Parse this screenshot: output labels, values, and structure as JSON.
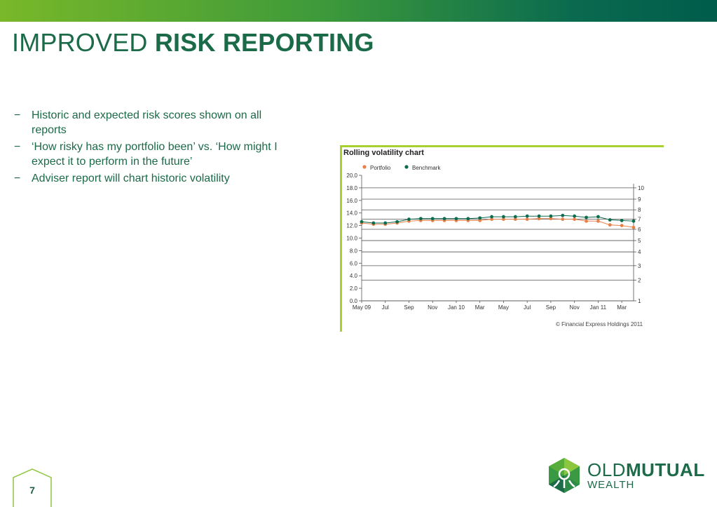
{
  "header": {
    "title_light": "IMPROVED",
    "title_bold": "RISK REPORTING",
    "bar_colors": [
      "#79b829",
      "#005c4b"
    ]
  },
  "bullets": [
    {
      "marker": "−",
      "text": "Historic and expected risk scores shown on all reports"
    },
    {
      "marker": "−",
      "text": "‘How risky has my portfolio been’ vs. ‘How might I expect it to perform in the future’"
    },
    {
      "marker": "−",
      "text": "Adviser report will chart historic volatility"
    }
  ],
  "chart_data": {
    "type": "line",
    "title": "Rolling volatility chart",
    "legend": [
      "Portfolio",
      "Benchmark"
    ],
    "legend_placement": "top-left",
    "x": [
      "May 09",
      "Jun 09",
      "Jul",
      "Aug",
      "Sep",
      "Oct",
      "Nov",
      "Dec",
      "Jan 10",
      "Feb",
      "Mar",
      "Apr",
      "May",
      "Jun",
      "Jul",
      "Aug",
      "Sep",
      "Oct",
      "Nov",
      "Dec",
      "Jan 11",
      "Feb",
      "Mar",
      "Apr"
    ],
    "x_tick_labels": [
      "May 09",
      "Jul",
      "Sep",
      "Nov",
      "Jan 10",
      "Mar",
      "May",
      "Jul",
      "Sep",
      "Nov",
      "Jan 11",
      "Mar"
    ],
    "x_tick_indices": [
      0,
      2,
      4,
      6,
      8,
      10,
      12,
      14,
      16,
      18,
      20,
      22
    ],
    "series": [
      {
        "name": "Portfolio",
        "color": "#e8804a",
        "values": [
          12.4,
          12.2,
          12.2,
          12.4,
          12.7,
          12.8,
          12.8,
          12.8,
          12.8,
          12.8,
          12.8,
          13.0,
          13.0,
          13.0,
          13.0,
          13.1,
          13.1,
          13.0,
          13.0,
          12.7,
          12.7,
          12.1,
          12.0,
          11.7
        ]
      },
      {
        "name": "Benchmark",
        "color": "#0d6b4e",
        "values": [
          12.6,
          12.4,
          12.4,
          12.6,
          13.0,
          13.1,
          13.1,
          13.1,
          13.1,
          13.1,
          13.2,
          13.4,
          13.4,
          13.4,
          13.5,
          13.5,
          13.5,
          13.6,
          13.5,
          13.3,
          13.4,
          12.9,
          12.8,
          12.7
        ]
      }
    ],
    "y_left": {
      "ylim": [
        0,
        20
      ],
      "ticks": [
        "0.0",
        "2.0",
        "4.0",
        "6.0",
        "8.0",
        "10.0",
        "12.0",
        "14.0",
        "16.0",
        "18.0",
        "20.0"
      ]
    },
    "y_right": {
      "label_values": [
        1,
        2,
        3,
        4,
        5,
        6,
        7,
        8,
        9,
        10
      ],
      "tick_positions_left_units": [
        0,
        3.3,
        5.6,
        7.8,
        9.6,
        11.4,
        13.0,
        14.5,
        16.2,
        18.0
      ]
    },
    "grid": "horizontal at right-axis ticks",
    "copyright": "© Financial Express Holdings 2011"
  },
  "footer": {
    "page_number": "7",
    "logo_word1": "OLD",
    "logo_word2": "MUTUAL",
    "logo_word3": "WEALTH"
  }
}
